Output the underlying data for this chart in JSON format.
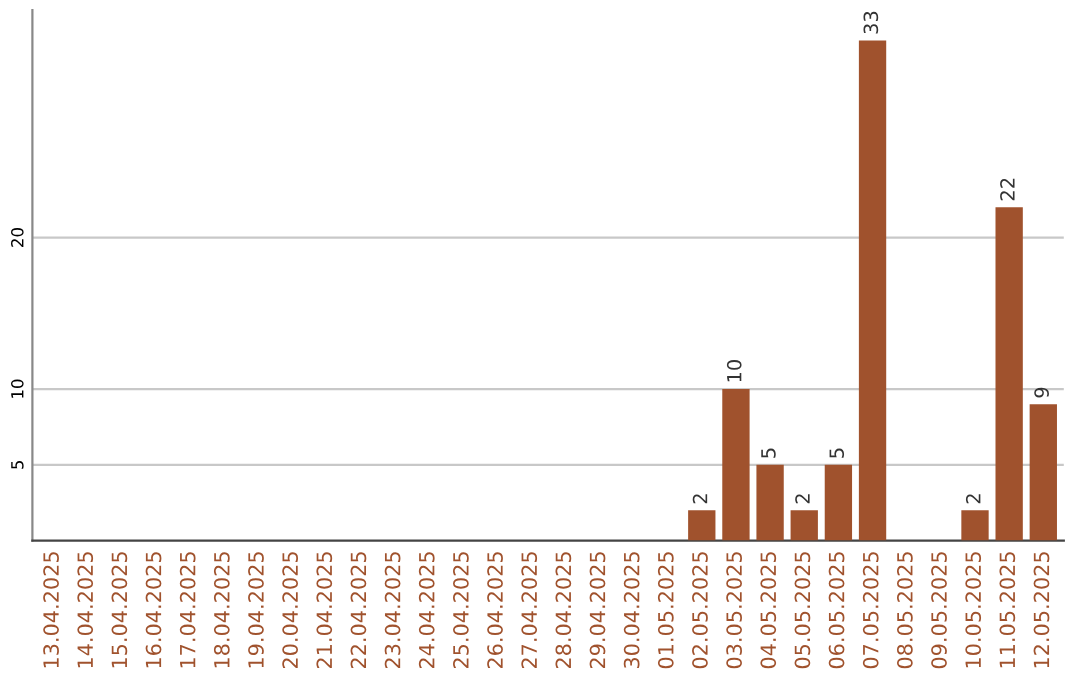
{
  "chart_data": {
    "type": "bar",
    "categories": [
      "13.04.2025",
      "14.04.2025",
      "15.04.2025",
      "16.04.2025",
      "17.04.2025",
      "18.04.2025",
      "19.04.2025",
      "20.04.2025",
      "21.04.2025",
      "22.04.2025",
      "23.04.2025",
      "24.04.2025",
      "25.04.2025",
      "26.04.2025",
      "27.04.2025",
      "28.04.2025",
      "29.04.2025",
      "30.04.2025",
      "01.05.2025",
      "02.05.2025",
      "03.05.2025",
      "04.05.2025",
      "05.05.2025",
      "06.05.2025",
      "07.05.2025",
      "08.05.2025",
      "09.05.2025",
      "10.05.2025",
      "11.05.2025",
      "12.05.2025"
    ],
    "values": [
      0,
      0,
      0,
      0,
      0,
      0,
      0,
      0,
      0,
      0,
      0,
      0,
      0,
      0,
      0,
      0,
      0,
      0,
      0,
      2,
      10,
      5,
      2,
      5,
      33,
      0,
      0,
      2,
      22,
      9
    ],
    "value_labels": [
      null,
      null,
      null,
      null,
      null,
      null,
      null,
      null,
      null,
      null,
      null,
      null,
      null,
      null,
      null,
      null,
      null,
      null,
      null,
      "2",
      "10",
      "5",
      "2",
      "5",
      "33",
      null,
      null,
      "2",
      "22",
      "9"
    ],
    "color": "#a0522d",
    "ylim": [
      0,
      35
    ],
    "yticks": [
      5,
      10,
      20
    ],
    "grid": "y"
  }
}
